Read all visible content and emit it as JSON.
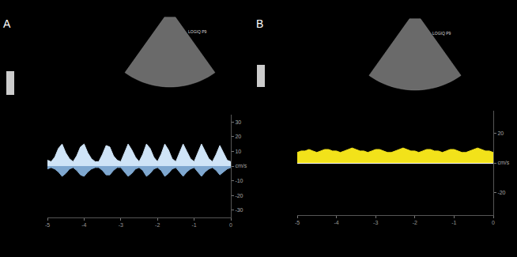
{
  "chart_data": [
    {
      "type": "area",
      "title": "A",
      "annotations": [
        "LOGIQ P9"
      ],
      "grid": false,
      "x": [
        -5.0,
        -4.9,
        -4.8,
        -4.7,
        -4.6,
        -4.5,
        -4.4,
        -4.3,
        -4.2,
        -4.1,
        -4.0,
        -3.9,
        -3.8,
        -3.7,
        -3.6,
        -3.5,
        -3.4,
        -3.3,
        -3.2,
        -3.1,
        -3.0,
        -2.9,
        -2.8,
        -2.7,
        -2.6,
        -2.5,
        -2.4,
        -2.3,
        -2.2,
        -2.1,
        -2.0,
        -1.9,
        -1.8,
        -1.7,
        -1.6,
        -1.5,
        -1.4,
        -1.3,
        -1.2,
        -1.1,
        -1.0,
        -0.9,
        -0.8,
        -0.7,
        -0.6,
        -0.5,
        -0.4,
        -0.3,
        -0.2,
        -0.1,
        0.0
      ],
      "series": [
        {
          "color": "#cfe4f7",
          "values": [
            4,
            3,
            6,
            12,
            15,
            9,
            5,
            3,
            7,
            13,
            15,
            9,
            5,
            3,
            3,
            8,
            14,
            13,
            7,
            4,
            3,
            9,
            15,
            11,
            6,
            3,
            8,
            15,
            12,
            6,
            3,
            8,
            15,
            11,
            5,
            3,
            9,
            15,
            10,
            5,
            3,
            9,
            15,
            10,
            5,
            3,
            8,
            14,
            9,
            4,
            3
          ]
        },
        {
          "color": "#7fa8d0",
          "values": [
            -2,
            -1,
            -2,
            -4,
            -7,
            -5,
            -2,
            -1,
            -3,
            -6,
            -7,
            -4,
            -2,
            -1,
            -1,
            -3,
            -6,
            -6,
            -3,
            -1,
            -1,
            -4,
            -7,
            -5,
            -2,
            -1,
            -3,
            -7,
            -5,
            -2,
            -1,
            -3,
            -7,
            -5,
            -2,
            -1,
            -4,
            -7,
            -4,
            -2,
            -1,
            -4,
            -7,
            -4,
            -2,
            -1,
            -3,
            -6,
            -4,
            -2,
            -1
          ]
        }
      ],
      "xlim": [
        -5,
        0
      ],
      "xticks": [
        -5,
        -4,
        -3,
        -2,
        -1,
        0
      ],
      "ylim": [
        -35,
        35
      ],
      "yticks": [
        -30,
        -20,
        -10,
        {
          "value": 0,
          "label": "cm/s"
        },
        10,
        20,
        30
      ]
    },
    {
      "type": "area",
      "title": "B",
      "annotations": [
        "LOGIQ P9"
      ],
      "grid": false,
      "x": [
        -5.0,
        -4.9,
        -4.8,
        -4.7,
        -4.6,
        -4.5,
        -4.4,
        -4.3,
        -4.2,
        -4.1,
        -4.0,
        -3.9,
        -3.8,
        -3.7,
        -3.6,
        -3.5,
        -3.4,
        -3.3,
        -3.2,
        -3.1,
        -3.0,
        -2.9,
        -2.8,
        -2.7,
        -2.6,
        -2.5,
        -2.4,
        -2.3,
        -2.2,
        -2.1,
        -2.0,
        -1.9,
        -1.8,
        -1.7,
        -1.6,
        -1.5,
        -1.4,
        -1.3,
        -1.2,
        -1.1,
        -1.0,
        -0.9,
        -0.8,
        -0.7,
        -0.6,
        -0.5,
        -0.4,
        -0.3,
        -0.2,
        -0.1,
        0.0
      ],
      "series": [
        {
          "color": "#f2e21a",
          "values": [
            7,
            8,
            8,
            9,
            8,
            7,
            8,
            9,
            9,
            8,
            8,
            7,
            8,
            9,
            10,
            9,
            8,
            8,
            7,
            8,
            9,
            9,
            8,
            7,
            7,
            8,
            9,
            10,
            9,
            8,
            8,
            7,
            8,
            9,
            9,
            8,
            8,
            7,
            8,
            9,
            9,
            8,
            7,
            7,
            8,
            9,
            10,
            9,
            8,
            8,
            7
          ]
        }
      ],
      "xlim": [
        -5,
        0
      ],
      "xticks": [
        -5,
        -4,
        -3,
        -2,
        -1,
        0
      ],
      "ylim": [
        -35,
        35
      ],
      "yticks": [
        -20,
        {
          "value": 0,
          "label": "cm/s"
        },
        20
      ]
    }
  ]
}
